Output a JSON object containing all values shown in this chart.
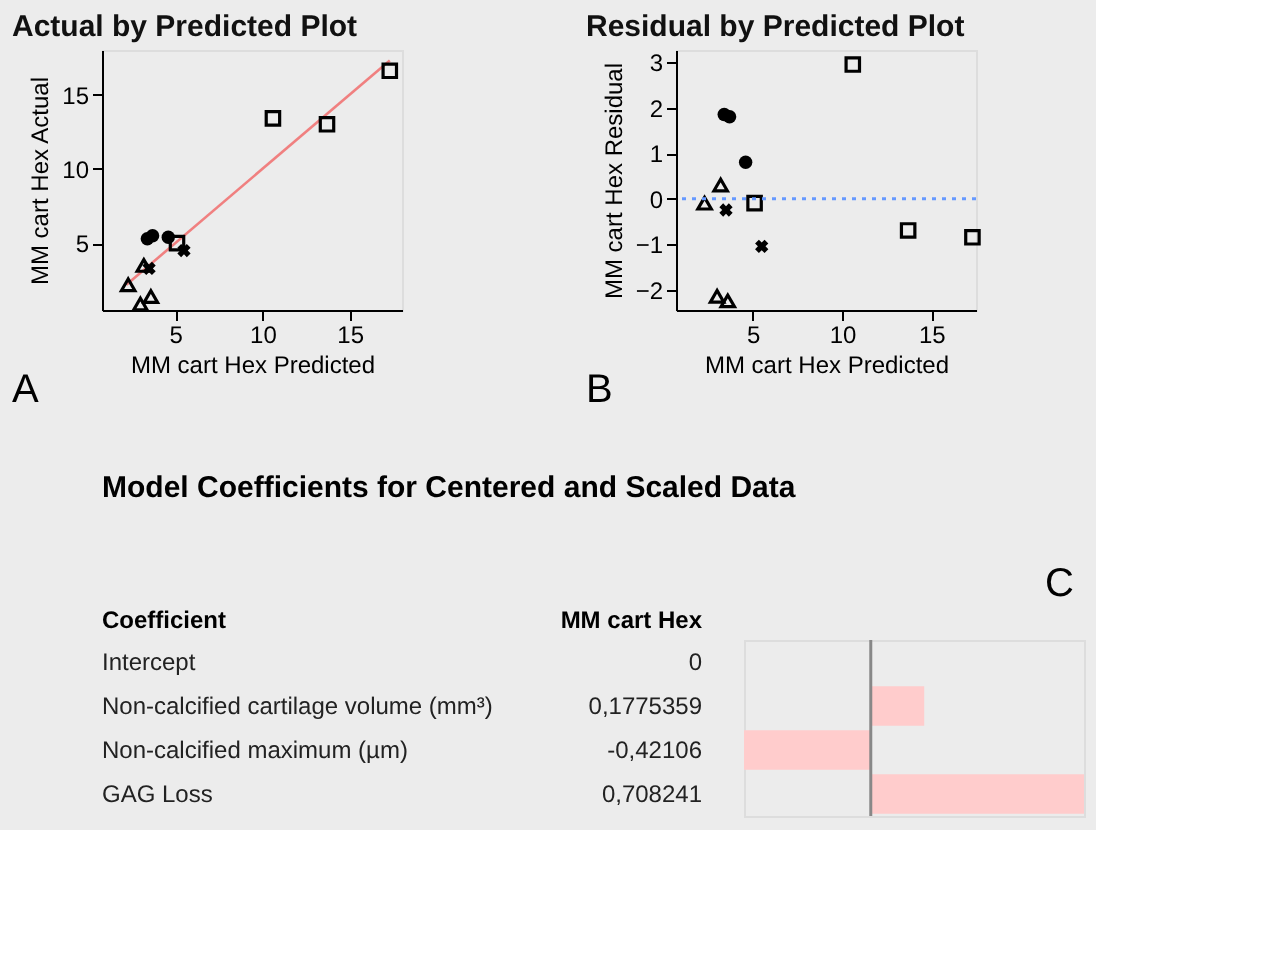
{
  "chart_data": [
    {
      "type": "scatter",
      "title": "Actual by Predicted Plot",
      "xlabel": "MM cart Hex Predicted",
      "ylabel": "MM cart Hex Actual",
      "xlim": [
        0.8,
        18
      ],
      "ylim": [
        0.5,
        18
      ],
      "xticks": [
        5,
        10,
        15
      ],
      "yticks": [
        5,
        10,
        15
      ],
      "grid": false,
      "annotations": [
        "A"
      ],
      "series": [
        {
          "type": "line",
          "color": "#f08080",
          "marker": "none",
          "line_style": "solid",
          "x": [
            2.2,
            17.3
          ],
          "values": [
            2.2,
            17.3
          ]
        },
        {
          "color": "#000000",
          "marker": "square",
          "x": [
            10.6,
            13.7,
            17.3,
            5.1
          ],
          "values": [
            13.4,
            13.0,
            16.6,
            5.0
          ]
        },
        {
          "color": "#000000",
          "marker": "circle",
          "x": [
            3.4,
            3.7,
            4.6
          ],
          "values": [
            5.3,
            5.5,
            5.4
          ]
        },
        {
          "color": "#000000",
          "marker": "cross",
          "x": [
            3.5,
            5.5
          ],
          "values": [
            3.3,
            4.5
          ]
        },
        {
          "color": "#000000",
          "marker": "triangle",
          "x": [
            2.3,
            3.2,
            3.0,
            3.6
          ],
          "values": [
            2.2,
            3.5,
            0.9,
            1.4
          ]
        }
      ]
    },
    {
      "type": "scatter",
      "title": "Residual by Predicted Plot",
      "xlabel": "MM cart Hex Predicted",
      "ylabel": "MM cart Hex Residual",
      "xlim": [
        0.7,
        17.5
      ],
      "ylim": [
        -2.45,
        3.27
      ],
      "xticks": [
        5,
        10,
        15
      ],
      "yticks": [
        -2,
        -1,
        0,
        1,
        2,
        3
      ],
      "grid": false,
      "annotations": [
        "B"
      ],
      "ref_lines": [
        {
          "axis": "y",
          "value": 0,
          "label": null,
          "color": "#6699ff",
          "line_style": "dotted"
        }
      ],
      "series": [
        {
          "color": "#000000",
          "marker": "square",
          "x": [
            10.6,
            13.7,
            17.3,
            5.1
          ],
          "values": [
            2.95,
            -0.7,
            -0.85,
            -0.1
          ]
        },
        {
          "color": "#000000",
          "marker": "circle",
          "x": [
            3.4,
            3.7,
            4.6
          ],
          "values": [
            1.85,
            1.8,
            0.8
          ]
        },
        {
          "color": "#000000",
          "marker": "cross",
          "x": [
            3.5,
            5.5
          ],
          "values": [
            -0.25,
            -1.05
          ]
        },
        {
          "color": "#000000",
          "marker": "triangle",
          "x": [
            2.3,
            3.2,
            3.0,
            3.6
          ],
          "values": [
            -0.1,
            0.3,
            -2.15,
            -2.25
          ]
        }
      ]
    },
    {
      "type": "bar",
      "orientation": "horizontal",
      "title": "Model Coefficients for Centered and Scaled Data",
      "annotations": [
        "C",
        "Coefficient",
        "MM cart Hex"
      ],
      "categories": [
        "Intercept",
        "Non-calcified cartilage volume (mm³)",
        "Non-calcified maximum (µm)",
        "GAG Loss"
      ],
      "values": [
        0,
        0.1775359,
        -0.42106,
        0.708241
      ],
      "color": "#ffcccc",
      "value_labels": [
        "0",
        "0,1775359",
        "-0,42106",
        "0,708241"
      ]
    }
  ]
}
